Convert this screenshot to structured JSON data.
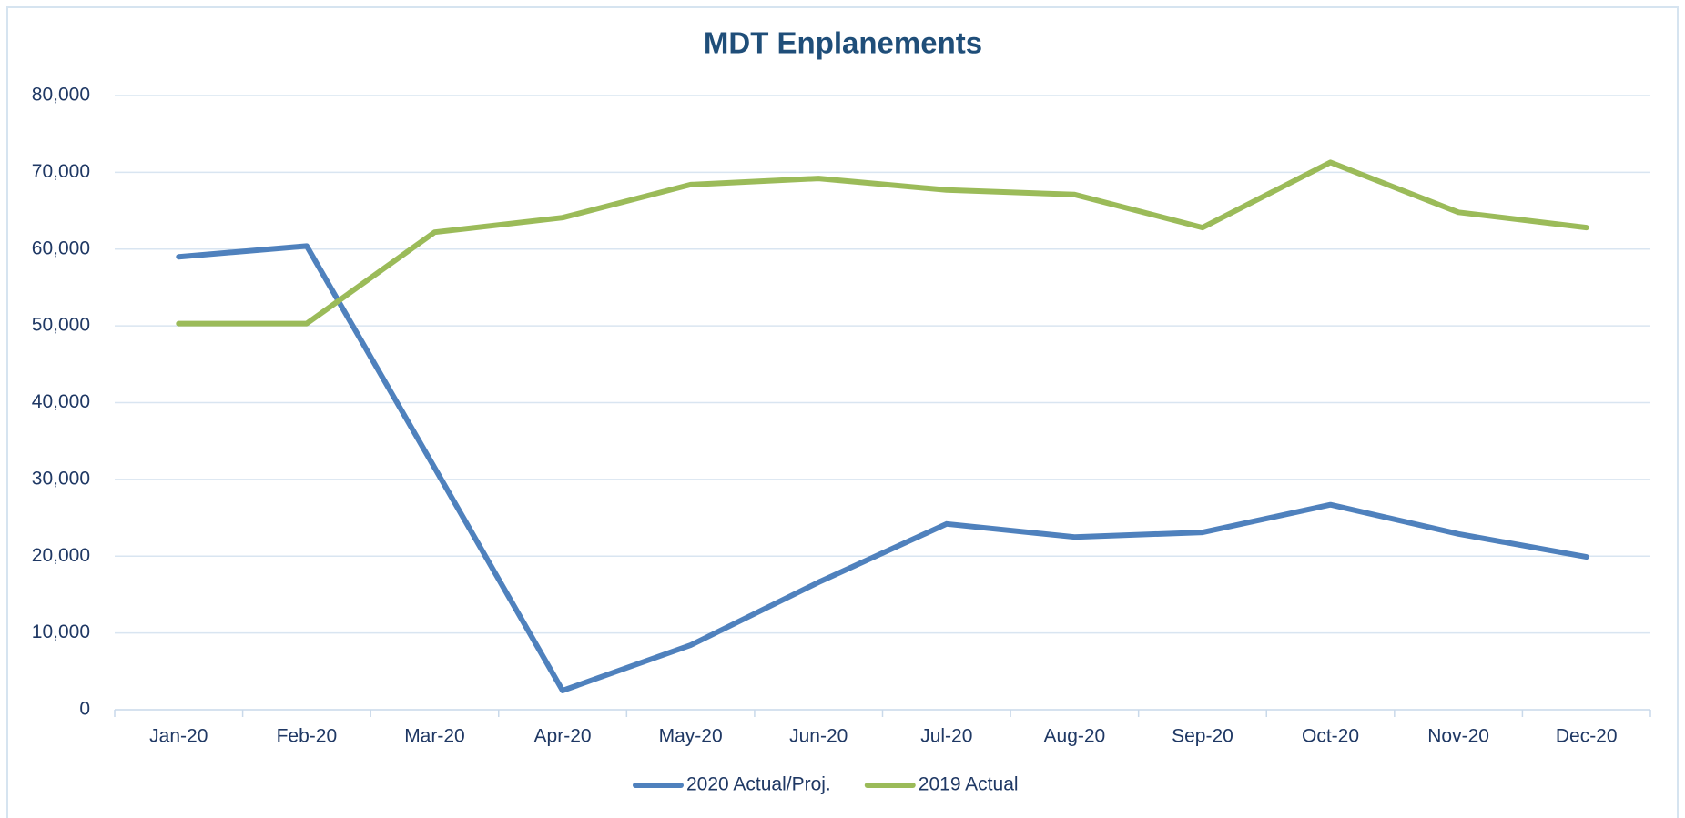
{
  "chart_data": {
    "type": "line",
    "title": "MDT Enplanements",
    "categories": [
      "Jan-20",
      "Feb-20",
      "Mar-20",
      "Apr-20",
      "May-20",
      "Jun-20",
      "Jul-20",
      "Aug-20",
      "Sep-20",
      "Oct-20",
      "Nov-20",
      "Dec-20"
    ],
    "series": [
      {
        "name": "2020 Actual/Proj.",
        "color": "#4f81bd",
        "values": [
          59000,
          60400,
          31500,
          2500,
          8400,
          16600,
          24200,
          22500,
          23100,
          26700,
          22900,
          19900
        ]
      },
      {
        "name": "2019 Actual",
        "color": "#9bbb59",
        "values": [
          50300,
          50300,
          62200,
          64100,
          68400,
          69200,
          67700,
          67100,
          62800,
          71300,
          64800,
          62800
        ]
      }
    ],
    "ylim": [
      0,
      80000
    ],
    "yticks": [
      0,
      {
        "value": 10000,
        "label": "10,000"
      },
      {
        "value": 20000,
        "label": "20,000"
      },
      {
        "value": 30000,
        "label": "30,000"
      },
      {
        "value": 40000,
        "label": "40,000"
      },
      {
        "value": 50000,
        "label": "50,000"
      },
      {
        "value": 60000,
        "label": "60,000"
      },
      {
        "value": 70000,
        "label": "70,000"
      },
      {
        "value": 80000,
        "label": "80,000"
      }
    ],
    "grid": true,
    "legend": "bottom"
  }
}
